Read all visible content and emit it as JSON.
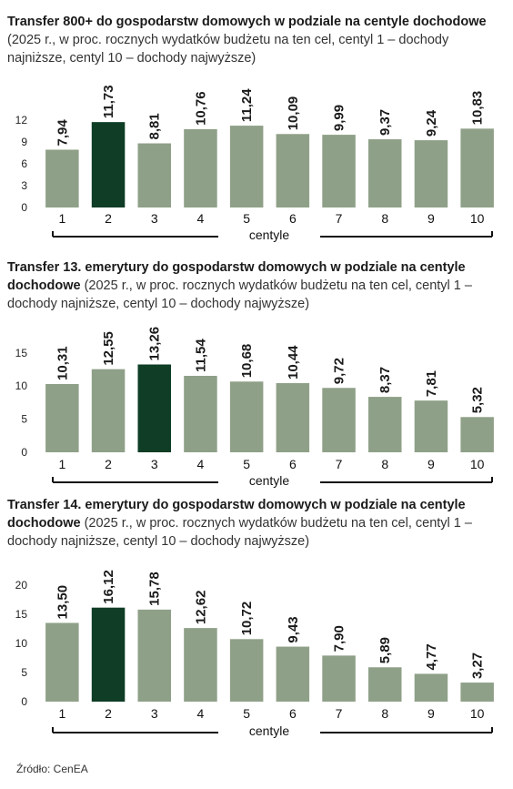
{
  "colors": {
    "bar": "#8fa088",
    "highlight": "#0f3d26",
    "text": "#1a1a1a"
  },
  "source": "Źródło: CenEA",
  "chart_data": [
    {
      "type": "bar",
      "title": "Transfer 800+  do gospodarstw domowych w podziale na centyle dochodowe",
      "subtitle": " (2025 r., w proc. rocznych wydatków budżetu na ten cel, centyl 1 – dochody najniższe, centyl 10 – dochody najwyższe)",
      "xlabel": "centyle",
      "ylabel": "",
      "categories": [
        "1",
        "2",
        "3",
        "4",
        "5",
        "6",
        "7",
        "8",
        "9",
        "10"
      ],
      "values": [
        7.94,
        11.73,
        8.81,
        10.76,
        11.24,
        10.09,
        9.99,
        9.37,
        9.24,
        10.83
      ],
      "value_labels": [
        "7,94",
        "11,73",
        "8,81",
        "10,76",
        "11,24",
        "10,09",
        "9,99",
        "9,37",
        "9,24",
        "10,83"
      ],
      "highlight_index": 1,
      "yticks": [
        "0",
        "3",
        "6",
        "9",
        "12"
      ],
      "ylim": [
        0,
        14
      ],
      "grid": false
    },
    {
      "type": "bar",
      "title": "Transfer 13. emerytury do gospodarstw domowych w podziale na centyle dochodowe",
      "subtitle": " (2025 r., w proc. rocznych wydatków budżetu na ten cel, centyl 1 – dochody najniższe, centyl 10 – dochody  najwyższe)",
      "xlabel": "centyle",
      "ylabel": "",
      "categories": [
        "1",
        "2",
        "3",
        "4",
        "5",
        "6",
        "7",
        "8",
        "9",
        "10"
      ],
      "values": [
        10.31,
        12.55,
        13.26,
        11.54,
        10.68,
        10.44,
        9.72,
        8.37,
        7.81,
        5.32
      ],
      "value_labels": [
        "10,31",
        "12,55",
        "13,26",
        "11,54",
        "10,68",
        "10,44",
        "9,72",
        "8,37",
        "7,81",
        "5,32"
      ],
      "highlight_index": 2,
      "yticks": [
        "0",
        "5",
        "10",
        "15"
      ],
      "ylim": [
        0,
        18
      ],
      "grid": false
    },
    {
      "type": "bar",
      "title": "Transfer 14. emerytury do gospodarstw domowych w podziale na centyle dochodowe",
      "subtitle": " (2025 r., w proc. rocznych wydatków budżetu na ten cel, centyl 1 – dochody najniższe, centyl 10 – dochody najwyższe)",
      "xlabel": "centyle",
      "ylabel": "",
      "categories": [
        "1",
        "2",
        "3",
        "4",
        "5",
        "6",
        "7",
        "8",
        "9",
        "10"
      ],
      "values": [
        13.5,
        16.12,
        15.78,
        12.62,
        10.72,
        9.43,
        7.9,
        5.89,
        4.77,
        3.27
      ],
      "value_labels": [
        "13,50",
        "16,12",
        "15,78",
        "12,62",
        "10,72",
        "9,43",
        "7,90",
        "5,89",
        "4,77",
        "3,27"
      ],
      "highlight_index": 1,
      "yticks": [
        "0",
        "5",
        "10",
        "15",
        "20"
      ],
      "ylim": [
        0,
        22
      ],
      "grid": false
    }
  ]
}
